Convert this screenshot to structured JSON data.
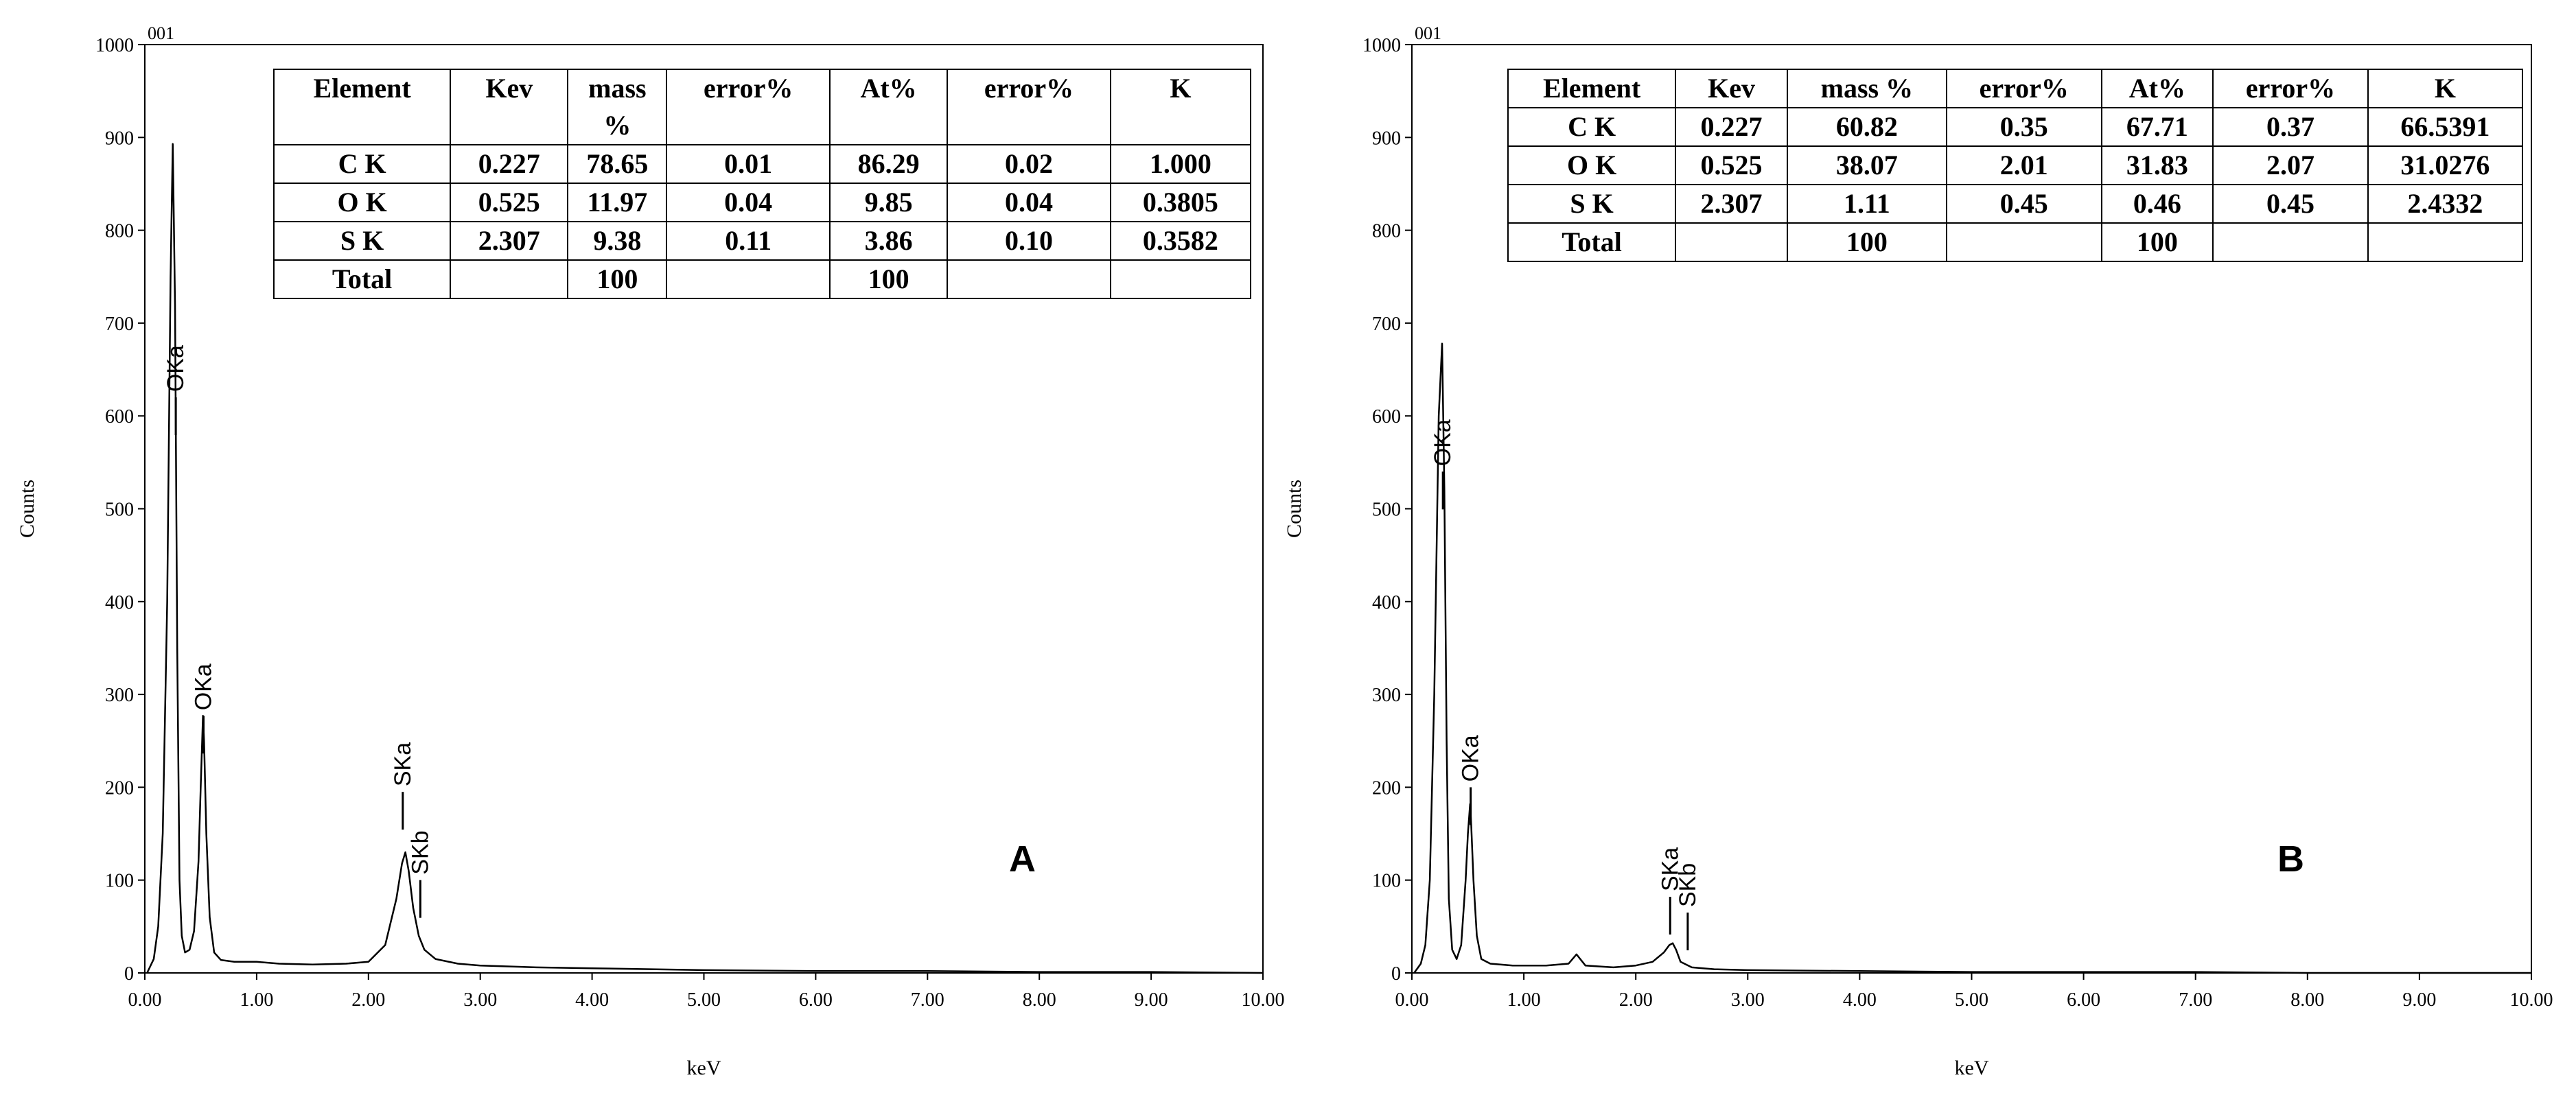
{
  "chart_data": [
    {
      "type": "line",
      "panel_label": "A",
      "corner_label": "001",
      "xlabel": "keV",
      "ylabel": "Counts",
      "xlim": [
        0,
        10
      ],
      "ylim": [
        0,
        1000
      ],
      "x_ticks": [
        "0.00",
        "1.00",
        "2.00",
        "3.00",
        "4.00",
        "5.00",
        "6.00",
        "7.00",
        "8.00",
        "9.00",
        "10.00"
      ],
      "y_ticks": [
        "0",
        "100",
        "200",
        "300",
        "400",
        "500",
        "600",
        "700",
        "800",
        "900",
        "1000"
      ],
      "series": [
        {
          "x": [
            0.02,
            0.08,
            0.12,
            0.16,
            0.2,
            0.23,
            0.25,
            0.27,
            0.29,
            0.31,
            0.33,
            0.36,
            0.4,
            0.44,
            0.48,
            0.5,
            0.52,
            0.53,
            0.55,
            0.58,
            0.62,
            0.68,
            0.8,
            1.0,
            1.2,
            1.5,
            1.8,
            2.0,
            2.15,
            2.25,
            2.3,
            2.33,
            2.36,
            2.4,
            2.45,
            2.5,
            2.6,
            2.8,
            3.0,
            3.5,
            4.0,
            5.0,
            6.0,
            7.0,
            8.0,
            9.0,
            10.0
          ],
          "y": [
            0,
            15,
            50,
            150,
            400,
            750,
            893,
            720,
            350,
            100,
            40,
            22,
            25,
            45,
            120,
            200,
            277,
            250,
            150,
            60,
            22,
            14,
            12,
            12,
            10,
            9,
            10,
            12,
            30,
            80,
            118,
            130,
            110,
            70,
            40,
            25,
            15,
            10,
            8,
            6,
            5,
            3,
            2,
            2,
            1,
            1,
            0
          ]
        }
      ],
      "peak_labels": [
        {
          "text": "OKa",
          "x": 0.277,
          "y": 620
        },
        {
          "text": "OKa",
          "x": 0.525,
          "y": 277
        },
        {
          "text": "SKa",
          "x": 2.307,
          "y": 195
        },
        {
          "text": "SKb",
          "x": 2.464,
          "y": 100
        }
      ],
      "table": {
        "headers": [
          "Element",
          "Kev",
          "mass %",
          "error%",
          "At%",
          "error%",
          "K"
        ],
        "rows": [
          [
            "C K",
            "0.227",
            "78.65",
            "0.01",
            "86.29",
            "0.02",
            "1.000"
          ],
          [
            "O K",
            "0.525",
            "11.97",
            "0.04",
            "9.85",
            "0.04",
            "0.3805"
          ],
          [
            "S K",
            "2.307",
            "9.38",
            "0.11",
            "3.86",
            "0.10",
            "0.3582"
          ],
          [
            "Total",
            "",
            "100",
            "",
            "100",
            "",
            ""
          ]
        ]
      }
    },
    {
      "type": "line",
      "panel_label": "B",
      "corner_label": "001",
      "xlabel": "keV",
      "ylabel": "Counts",
      "xlim": [
        0,
        10
      ],
      "ylim": [
        0,
        1000
      ],
      "x_ticks": [
        "0.00",
        "1.00",
        "2.00",
        "3.00",
        "4.00",
        "5.00",
        "6.00",
        "7.00",
        "8.00",
        "9.00",
        "10.00"
      ],
      "y_ticks": [
        "0",
        "100",
        "200",
        "300",
        "400",
        "500",
        "600",
        "700",
        "800",
        "900",
        "1000"
      ],
      "series": [
        {
          "x": [
            0.02,
            0.08,
            0.12,
            0.16,
            0.2,
            0.24,
            0.27,
            0.29,
            0.31,
            0.33,
            0.36,
            0.4,
            0.44,
            0.48,
            0.5,
            0.52,
            0.53,
            0.55,
            0.58,
            0.62,
            0.7,
            0.9,
            1.2,
            1.4,
            1.47,
            1.55,
            1.8,
            2.0,
            2.15,
            2.25,
            2.3,
            2.33,
            2.36,
            2.4,
            2.5,
            2.7,
            3.0,
            4.0,
            5.0,
            6.0,
            7.0,
            8.0,
            9.0,
            10.0
          ],
          "y": [
            0,
            10,
            30,
            100,
            300,
            600,
            678,
            520,
            250,
            80,
            25,
            15,
            30,
            100,
            150,
            182,
            160,
            100,
            40,
            15,
            10,
            8,
            8,
            10,
            20,
            8,
            6,
            8,
            12,
            22,
            30,
            32,
            25,
            12,
            6,
            4,
            3,
            2,
            1,
            1,
            1,
            0,
            0,
            0
          ]
        }
      ],
      "peak_labels": [
        {
          "text": "OKa",
          "x": 0.277,
          "y": 540
        },
        {
          "text": "OKa",
          "x": 0.525,
          "y": 200
        },
        {
          "text": "SKa",
          "x": 2.307,
          "y": 82
        },
        {
          "text": "SKb",
          "x": 2.464,
          "y": 65
        }
      ],
      "table": {
        "headers": [
          "Element",
          "Kev",
          "mass %",
          "error%",
          "At%",
          "error%",
          "K"
        ],
        "rows": [
          [
            "C K",
            "0.227",
            "60.82",
            "0.35",
            "67.71",
            "0.37",
            "66.5391"
          ],
          [
            "O K",
            "0.525",
            "38.07",
            "2.01",
            "31.83",
            "2.07",
            "31.0276"
          ],
          [
            "S K",
            "2.307",
            "1.11",
            "0.45",
            "0.46",
            "0.45",
            "2.4332"
          ],
          [
            "Total",
            "",
            "100",
            "",
            "100",
            "",
            ""
          ]
        ]
      }
    }
  ]
}
